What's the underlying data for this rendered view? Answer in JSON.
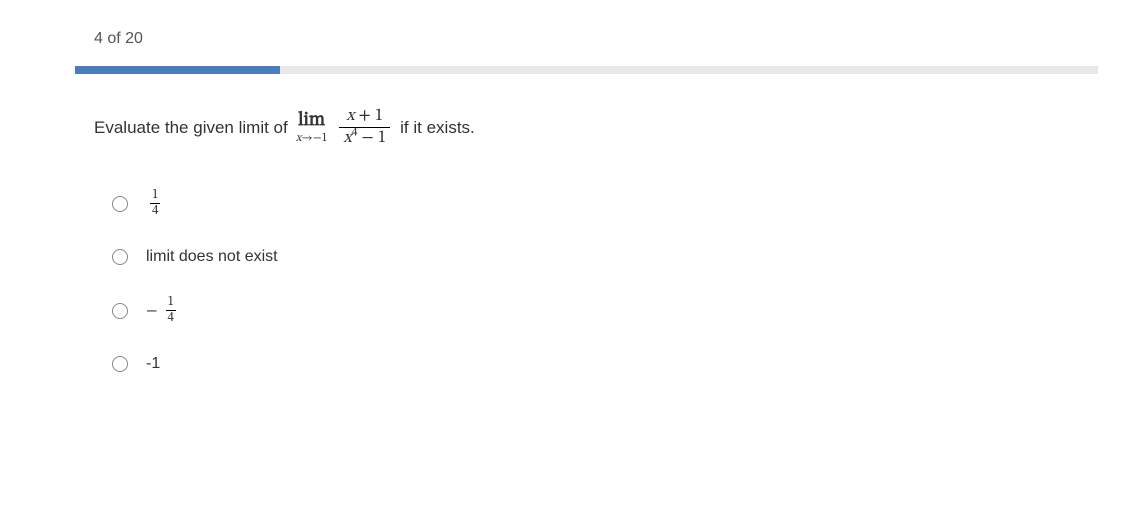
{
  "progress": {
    "label": "4 of 20",
    "current": 4,
    "total": 20,
    "percent": 20,
    "track_color": "#e8e8e8",
    "fill_color": "#4a7ebb"
  },
  "question": {
    "prefix_text": "Evaluate the given limit of",
    "limit_label": "lim",
    "limit_subscript": "x→−1",
    "fraction_numerator": "x + 1",
    "fraction_denominator_base": "x",
    "fraction_denominator_exp": "4",
    "fraction_denominator_tail": " − 1",
    "suffix_text": "if it exists."
  },
  "options": [
    {
      "type": "fraction",
      "sign": "",
      "num": "1",
      "den": "4"
    },
    {
      "type": "text",
      "text": "limit does not exist"
    },
    {
      "type": "fraction",
      "sign": "−",
      "num": "1",
      "den": "4"
    },
    {
      "type": "text",
      "text": "-1"
    }
  ],
  "colors": {
    "text": "#333333",
    "subtext": "#555555",
    "radio_border": "#888888",
    "background": "#ffffff"
  },
  "fonts": {
    "body_size_pt": 12,
    "question_size_pt": 13
  }
}
